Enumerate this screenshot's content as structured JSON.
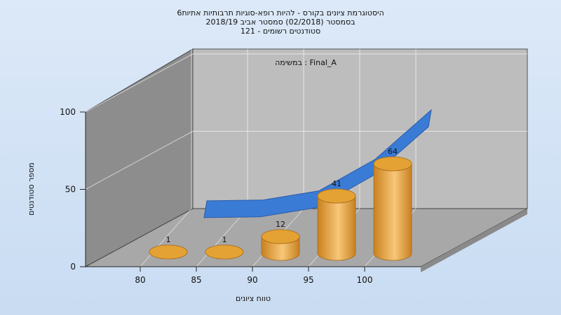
{
  "chart_data": {
    "type": "bar",
    "title_lines": [
      "היסטוגרמת ציונים בקורס - להיות רופא-סוגיות תרבותיות אתיות6",
      "בסמסטר  (02/2018)  סמסטר אביב 2018/19",
      "סטודנטים רשומים - 121"
    ],
    "annotation": "במשימה : Final_A",
    "xlabel": "טווח ציונים",
    "ylabel": "מספר סטודנטים",
    "x_ticks": [
      "80",
      "85",
      "90",
      "95",
      "100"
    ],
    "y_ticks": [
      "0",
      "50",
      "100"
    ],
    "ylim": [
      0,
      100
    ],
    "bars": {
      "categories": [
        "80",
        "85",
        "90",
        "95",
        "100"
      ],
      "values": [
        1,
        1,
        12,
        41,
        64
      ],
      "color": "#e5a43a"
    },
    "cumulative_line": {
      "values": [
        1,
        2,
        14,
        55,
        119
      ],
      "color": "#3a7bd5"
    },
    "grid": true
  }
}
